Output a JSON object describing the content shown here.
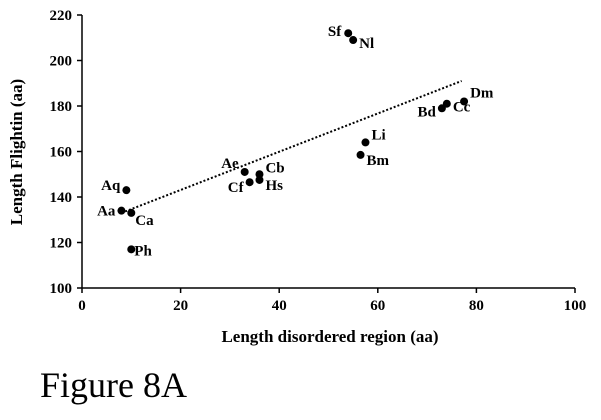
{
  "chart_data": {
    "type": "scatter",
    "xlabel": "Length disordered region (aa)",
    "ylabel": "Length Flightin (aa)",
    "caption": "Figure 8A",
    "xlim": [
      0,
      100
    ],
    "xticks": [
      0,
      20,
      40,
      60,
      80,
      100
    ],
    "ylim": [
      100,
      220
    ],
    "yticks": [
      100,
      120,
      140,
      160,
      180,
      200,
      220
    ],
    "color": "#000000",
    "points": {
      "labels": [
        "Sf",
        "Nl",
        "Dm",
        "Bd",
        "Cc",
        "Li",
        "Bm",
        "Ae",
        "Cb",
        "Hs",
        "Cf",
        "Aq",
        "Aa",
        "Ca",
        "Ph"
      ],
      "x": [
        54,
        55,
        77.5,
        73,
        74,
        57.5,
        56.5,
        33,
        36,
        36,
        34,
        9,
        8,
        10,
        10
      ],
      "y": [
        212,
        209,
        182,
        179,
        181,
        164,
        158.5,
        151,
        150,
        147.5,
        146.5,
        143,
        134,
        133,
        117
      ]
    },
    "trendline": {
      "x": [
        8,
        77
      ],
      "y": [
        133,
        191
      ]
    }
  }
}
